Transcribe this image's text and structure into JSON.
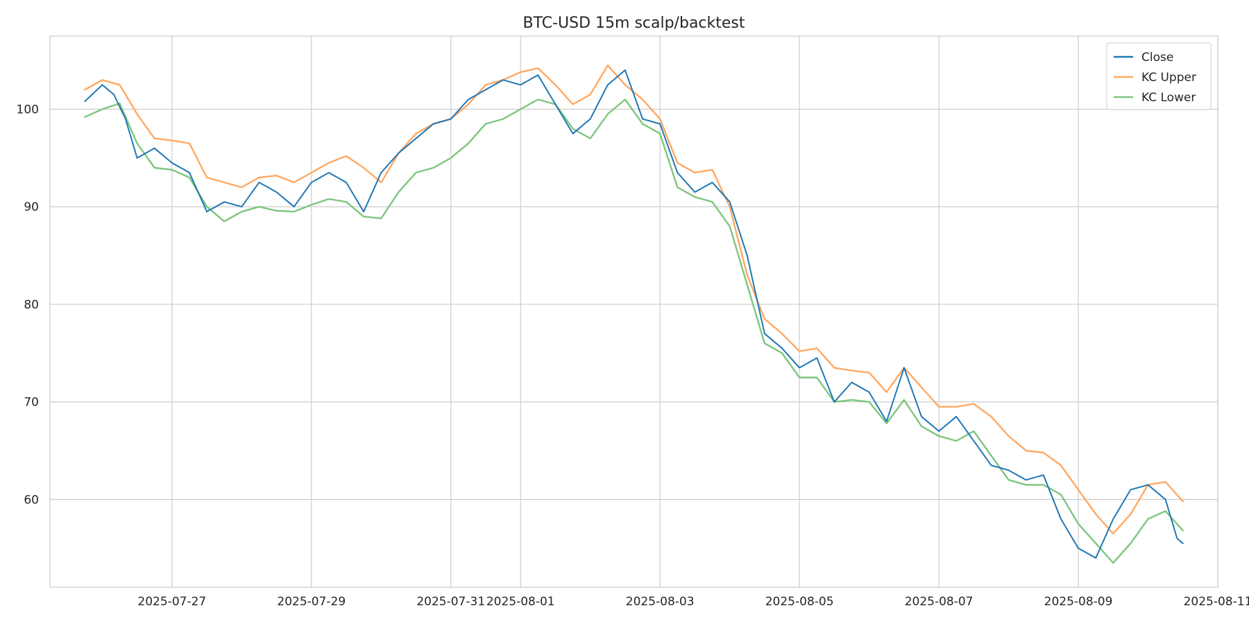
{
  "chart_data": {
    "type": "line",
    "title": "BTC-USD 15m scalp/backtest",
    "xlabel": "",
    "ylabel": "",
    "grid": true,
    "legend_position": "top-right",
    "xlim": [
      "2025-07-25T06:00",
      "2025-08-11T00:00"
    ],
    "ylim": [
      51,
      107.5
    ],
    "xticks": [
      "2025-07-27",
      "2025-07-29",
      "2025-07-31",
      "2025-08-01",
      "2025-08-03",
      "2025-08-05",
      "2025-08-07",
      "2025-08-09",
      "2025-08-11"
    ],
    "yticks": [
      60,
      70,
      80,
      90,
      100
    ],
    "series": [
      {
        "name": "Close",
        "color": "#1f77b4",
        "x": [
          "2025-07-25T18:00",
          "2025-07-26T00:00",
          "2025-07-26T04:00",
          "2025-07-26T08:00",
          "2025-07-26T12:00",
          "2025-07-26T18:00",
          "2025-07-27T00:00",
          "2025-07-27T06:00",
          "2025-07-27T12:00",
          "2025-07-27T18:00",
          "2025-07-28T00:00",
          "2025-07-28T06:00",
          "2025-07-28T12:00",
          "2025-07-28T18:00",
          "2025-07-29T00:00",
          "2025-07-29T06:00",
          "2025-07-29T12:00",
          "2025-07-29T18:00",
          "2025-07-30T00:00",
          "2025-07-30T06:00",
          "2025-07-30T12:00",
          "2025-07-30T18:00",
          "2025-07-31T00:00",
          "2025-07-31T06:00",
          "2025-07-31T12:00",
          "2025-07-31T18:00",
          "2025-08-01T00:00",
          "2025-08-01T06:00",
          "2025-08-01T12:00",
          "2025-08-01T18:00",
          "2025-08-02T00:00",
          "2025-08-02T06:00",
          "2025-08-02T12:00",
          "2025-08-02T18:00",
          "2025-08-03T00:00",
          "2025-08-03T06:00",
          "2025-08-03T12:00",
          "2025-08-03T18:00",
          "2025-08-04T00:00",
          "2025-08-04T06:00",
          "2025-08-04T12:00",
          "2025-08-04T18:00",
          "2025-08-05T00:00",
          "2025-08-05T06:00",
          "2025-08-05T12:00",
          "2025-08-05T18:00",
          "2025-08-06T00:00",
          "2025-08-06T06:00",
          "2025-08-06T12:00",
          "2025-08-06T18:00",
          "2025-08-07T00:00",
          "2025-08-07T06:00",
          "2025-08-07T12:00",
          "2025-08-07T18:00",
          "2025-08-08T00:00",
          "2025-08-08T06:00",
          "2025-08-08T12:00",
          "2025-08-08T18:00",
          "2025-08-09T00:00",
          "2025-08-09T06:00",
          "2025-08-09T12:00",
          "2025-08-09T18:00",
          "2025-08-10T00:00",
          "2025-08-10T06:00",
          "2025-08-10T10:00",
          "2025-08-10T12:00"
        ],
        "values": [
          100.8,
          102.5,
          101.5,
          99.0,
          95.0,
          96.0,
          94.5,
          93.5,
          89.5,
          90.5,
          90.0,
          92.5,
          91.5,
          90.0,
          92.5,
          93.5,
          92.5,
          89.5,
          93.5,
          95.5,
          97.0,
          98.5,
          99.0,
          101.0,
          102.0,
          103.0,
          102.5,
          103.5,
          100.5,
          97.5,
          99.0,
          102.5,
          104.0,
          99.0,
          98.5,
          93.5,
          91.5,
          92.5,
          90.5,
          85.0,
          77.0,
          75.5,
          73.5,
          74.5,
          70.0,
          72.0,
          71.0,
          68.0,
          73.5,
          68.5,
          67.0,
          68.5,
          66.0,
          63.5,
          63.0,
          62.0,
          62.5,
          58.0,
          55.0,
          54.0,
          58.0,
          61.0,
          61.5,
          60.0,
          56.0,
          55.5
        ]
      },
      {
        "name": "KC Upper",
        "color": "#ffa862",
        "x": [
          "2025-07-25T18:00",
          "2025-07-26T00:00",
          "2025-07-26T06:00",
          "2025-07-26T12:00",
          "2025-07-26T18:00",
          "2025-07-27T00:00",
          "2025-07-27T06:00",
          "2025-07-27T12:00",
          "2025-07-27T18:00",
          "2025-07-28T00:00",
          "2025-07-28T06:00",
          "2025-07-28T12:00",
          "2025-07-28T18:00",
          "2025-07-29T00:00",
          "2025-07-29T06:00",
          "2025-07-29T12:00",
          "2025-07-29T18:00",
          "2025-07-30T00:00",
          "2025-07-30T06:00",
          "2025-07-30T12:00",
          "2025-07-30T18:00",
          "2025-07-31T00:00",
          "2025-07-31T06:00",
          "2025-07-31T12:00",
          "2025-07-31T18:00",
          "2025-08-01T00:00",
          "2025-08-01T06:00",
          "2025-08-01T12:00",
          "2025-08-01T18:00",
          "2025-08-02T00:00",
          "2025-08-02T06:00",
          "2025-08-02T12:00",
          "2025-08-02T18:00",
          "2025-08-03T00:00",
          "2025-08-03T06:00",
          "2025-08-03T12:00",
          "2025-08-03T18:00",
          "2025-08-04T00:00",
          "2025-08-04T06:00",
          "2025-08-04T12:00",
          "2025-08-04T18:00",
          "2025-08-05T00:00",
          "2025-08-05T06:00",
          "2025-08-05T12:00",
          "2025-08-05T18:00",
          "2025-08-06T00:00",
          "2025-08-06T06:00",
          "2025-08-06T12:00",
          "2025-08-06T18:00",
          "2025-08-07T00:00",
          "2025-08-07T06:00",
          "2025-08-07T12:00",
          "2025-08-07T18:00",
          "2025-08-08T00:00",
          "2025-08-08T06:00",
          "2025-08-08T12:00",
          "2025-08-08T18:00",
          "2025-08-09T00:00",
          "2025-08-09T06:00",
          "2025-08-09T12:00",
          "2025-08-09T18:00",
          "2025-08-10T00:00",
          "2025-08-10T06:00",
          "2025-08-10T12:00"
        ],
        "values": [
          102.0,
          103.0,
          102.5,
          99.5,
          97.0,
          96.8,
          96.5,
          93.0,
          92.5,
          92.0,
          93.0,
          93.2,
          92.5,
          93.5,
          94.5,
          95.2,
          94.0,
          92.5,
          95.5,
          97.5,
          98.5,
          99.0,
          100.5,
          102.5,
          103.0,
          103.8,
          104.2,
          102.5,
          100.5,
          101.5,
          104.5,
          102.5,
          101.0,
          99.0,
          94.5,
          93.5,
          93.8,
          90.0,
          83.0,
          78.5,
          77.0,
          75.2,
          75.5,
          73.5,
          73.2,
          73.0,
          71.0,
          73.5,
          71.5,
          69.5,
          69.5,
          69.8,
          68.5,
          66.5,
          65.0,
          64.8,
          63.5,
          61.0,
          58.5,
          56.5,
          58.5,
          61.5,
          61.8,
          59.8
        ]
      },
      {
        "name": "KC Lower",
        "color": "#7dc67d",
        "x": [
          "2025-07-25T18:00",
          "2025-07-26T00:00",
          "2025-07-26T06:00",
          "2025-07-26T12:00",
          "2025-07-26T18:00",
          "2025-07-27T00:00",
          "2025-07-27T06:00",
          "2025-07-27T12:00",
          "2025-07-27T18:00",
          "2025-07-28T00:00",
          "2025-07-28T06:00",
          "2025-07-28T12:00",
          "2025-07-28T18:00",
          "2025-07-29T00:00",
          "2025-07-29T06:00",
          "2025-07-29T12:00",
          "2025-07-29T18:00",
          "2025-07-30T00:00",
          "2025-07-30T06:00",
          "2025-07-30T12:00",
          "2025-07-30T18:00",
          "2025-07-31T00:00",
          "2025-07-31T06:00",
          "2025-07-31T12:00",
          "2025-07-31T18:00",
          "2025-08-01T00:00",
          "2025-08-01T06:00",
          "2025-08-01T12:00",
          "2025-08-01T18:00",
          "2025-08-02T00:00",
          "2025-08-02T06:00",
          "2025-08-02T12:00",
          "2025-08-02T18:00",
          "2025-08-03T00:00",
          "2025-08-03T06:00",
          "2025-08-03T12:00",
          "2025-08-03T18:00",
          "2025-08-04T00:00",
          "2025-08-04T06:00",
          "2025-08-04T12:00",
          "2025-08-04T18:00",
          "2025-08-05T00:00",
          "2025-08-05T06:00",
          "2025-08-05T12:00",
          "2025-08-05T18:00",
          "2025-08-06T00:00",
          "2025-08-06T06:00",
          "2025-08-06T12:00",
          "2025-08-06T18:00",
          "2025-08-07T00:00",
          "2025-08-07T06:00",
          "2025-08-07T12:00",
          "2025-08-07T18:00",
          "2025-08-08T00:00",
          "2025-08-08T06:00",
          "2025-08-08T12:00",
          "2025-08-08T18:00",
          "2025-08-09T00:00",
          "2025-08-09T06:00",
          "2025-08-09T12:00",
          "2025-08-09T18:00",
          "2025-08-10T00:00",
          "2025-08-10T06:00",
          "2025-08-10T12:00"
        ],
        "values": [
          99.2,
          100.0,
          100.6,
          96.5,
          94.0,
          93.8,
          93.0,
          90.0,
          88.5,
          89.5,
          90.0,
          89.6,
          89.5,
          90.2,
          90.8,
          90.5,
          89.0,
          88.8,
          91.5,
          93.5,
          94.0,
          95.0,
          96.5,
          98.5,
          99.0,
          100.0,
          101.0,
          100.5,
          98.0,
          97.0,
          99.5,
          101.0,
          98.5,
          97.5,
          92.0,
          91.0,
          90.5,
          88.0,
          82.0,
          76.0,
          75.0,
          72.5,
          72.5,
          70.0,
          70.2,
          70.0,
          67.8,
          70.2,
          67.5,
          66.5,
          66.0,
          67.0,
          64.5,
          62.0,
          61.5,
          61.5,
          60.5,
          57.5,
          55.5,
          53.5,
          55.5,
          58.0,
          58.8,
          56.8
        ]
      }
    ]
  }
}
